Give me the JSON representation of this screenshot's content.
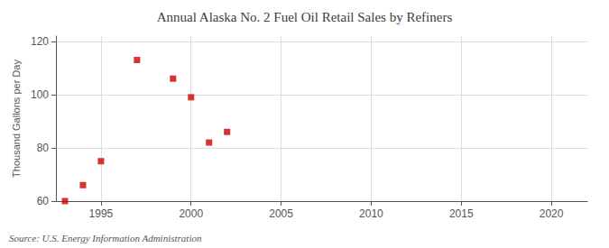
{
  "chart_data": {
    "type": "scatter",
    "title": "Annual Alaska No. 2 Fuel Oil Retail Sales by Refiners",
    "ylabel": "Thousand Gallons per Day",
    "annotation": "Source: U.S. Energy Information Administration",
    "x": [
      1993,
      1994,
      1995,
      1997,
      1999,
      2000,
      2001,
      2002
    ],
    "values": [
      60,
      66,
      75,
      113,
      106,
      99,
      82,
      86
    ],
    "color": "#cc0000",
    "marker": "square",
    "xlim": [
      1992.5,
      2022
    ],
    "xticks": [
      1995,
      2000,
      2005,
      2010,
      2015,
      2020
    ],
    "ylim": [
      60,
      122
    ],
    "yticks": [
      60,
      80,
      100,
      120
    ],
    "grid": true
  }
}
